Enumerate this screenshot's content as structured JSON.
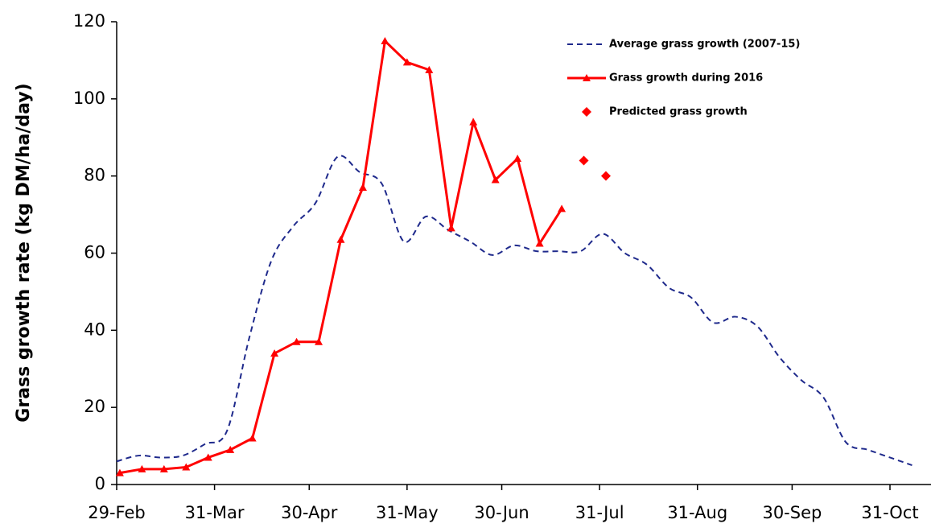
{
  "chart_data": {
    "type": "line",
    "y_label": "Grass growth rate (kg DM/ha/day)",
    "xlim": [
      60,
      318
    ],
    "ylim": [
      0,
      120
    ],
    "yticks": [
      0,
      20,
      40,
      60,
      80,
      100,
      120
    ],
    "xticks": [
      {
        "value": 60,
        "label": "29-Feb"
      },
      {
        "value": 91,
        "label": "31-Mar"
      },
      {
        "value": 121,
        "label": "30-Apr"
      },
      {
        "value": 152,
        "label": "31-May"
      },
      {
        "value": 182,
        "label": "30-Jun"
      },
      {
        "value": 213,
        "label": "31-Jul"
      },
      {
        "value": 244,
        "label": "31-Aug"
      },
      {
        "value": 274,
        "label": "30-Sep"
      },
      {
        "value": 305,
        "label": "31-Oct"
      }
    ],
    "legend": "upper right",
    "series": [
      {
        "name": "Average grass growth (2007-15)",
        "color": "#1f2a8c",
        "linestyle": "dashed",
        "marker": "none",
        "smooth": true,
        "x": [
          60,
          67,
          74,
          81,
          88,
          95,
          102,
          109,
          116,
          123,
          130,
          137,
          144,
          151,
          158,
          165,
          172,
          179,
          186,
          193,
          200,
          207,
          214,
          221,
          228,
          235,
          242,
          249,
          256,
          263,
          270,
          277,
          284,
          291,
          298,
          305,
          312
        ],
        "values": [
          6,
          7.5,
          7,
          7.5,
          10.5,
          14,
          38,
          58,
          67,
          73,
          85,
          81,
          78,
          63,
          69.5,
          66,
          63,
          59.5,
          62,
          60.5,
          60.5,
          60.5,
          65,
          60,
          57,
          51,
          48.5,
          42,
          43.5,
          41,
          33,
          27,
          22.5,
          11,
          9,
          7,
          5
        ]
      },
      {
        "name": "Grass growth during 2016",
        "color": "#ff0000",
        "linestyle": "solid",
        "marker": "triangle",
        "smooth": false,
        "x": [
          61,
          68,
          75,
          82,
          89,
          96,
          103,
          110,
          117,
          124,
          131,
          138,
          145,
          152,
          159,
          166,
          173,
          180,
          187,
          194,
          201
        ],
        "values": [
          3,
          4,
          4,
          4.5,
          7,
          9,
          12,
          34,
          37,
          37,
          63.5,
          77,
          115,
          109.5,
          107.5,
          66.5,
          94,
          79,
          84.5,
          62.5,
          71.5
        ]
      },
      {
        "name": "Predicted grass growth",
        "color": "#ff0000",
        "linestyle": "none",
        "marker": "diamond",
        "smooth": false,
        "x": [
          208,
          215
        ],
        "values": [
          84,
          80
        ]
      }
    ]
  }
}
